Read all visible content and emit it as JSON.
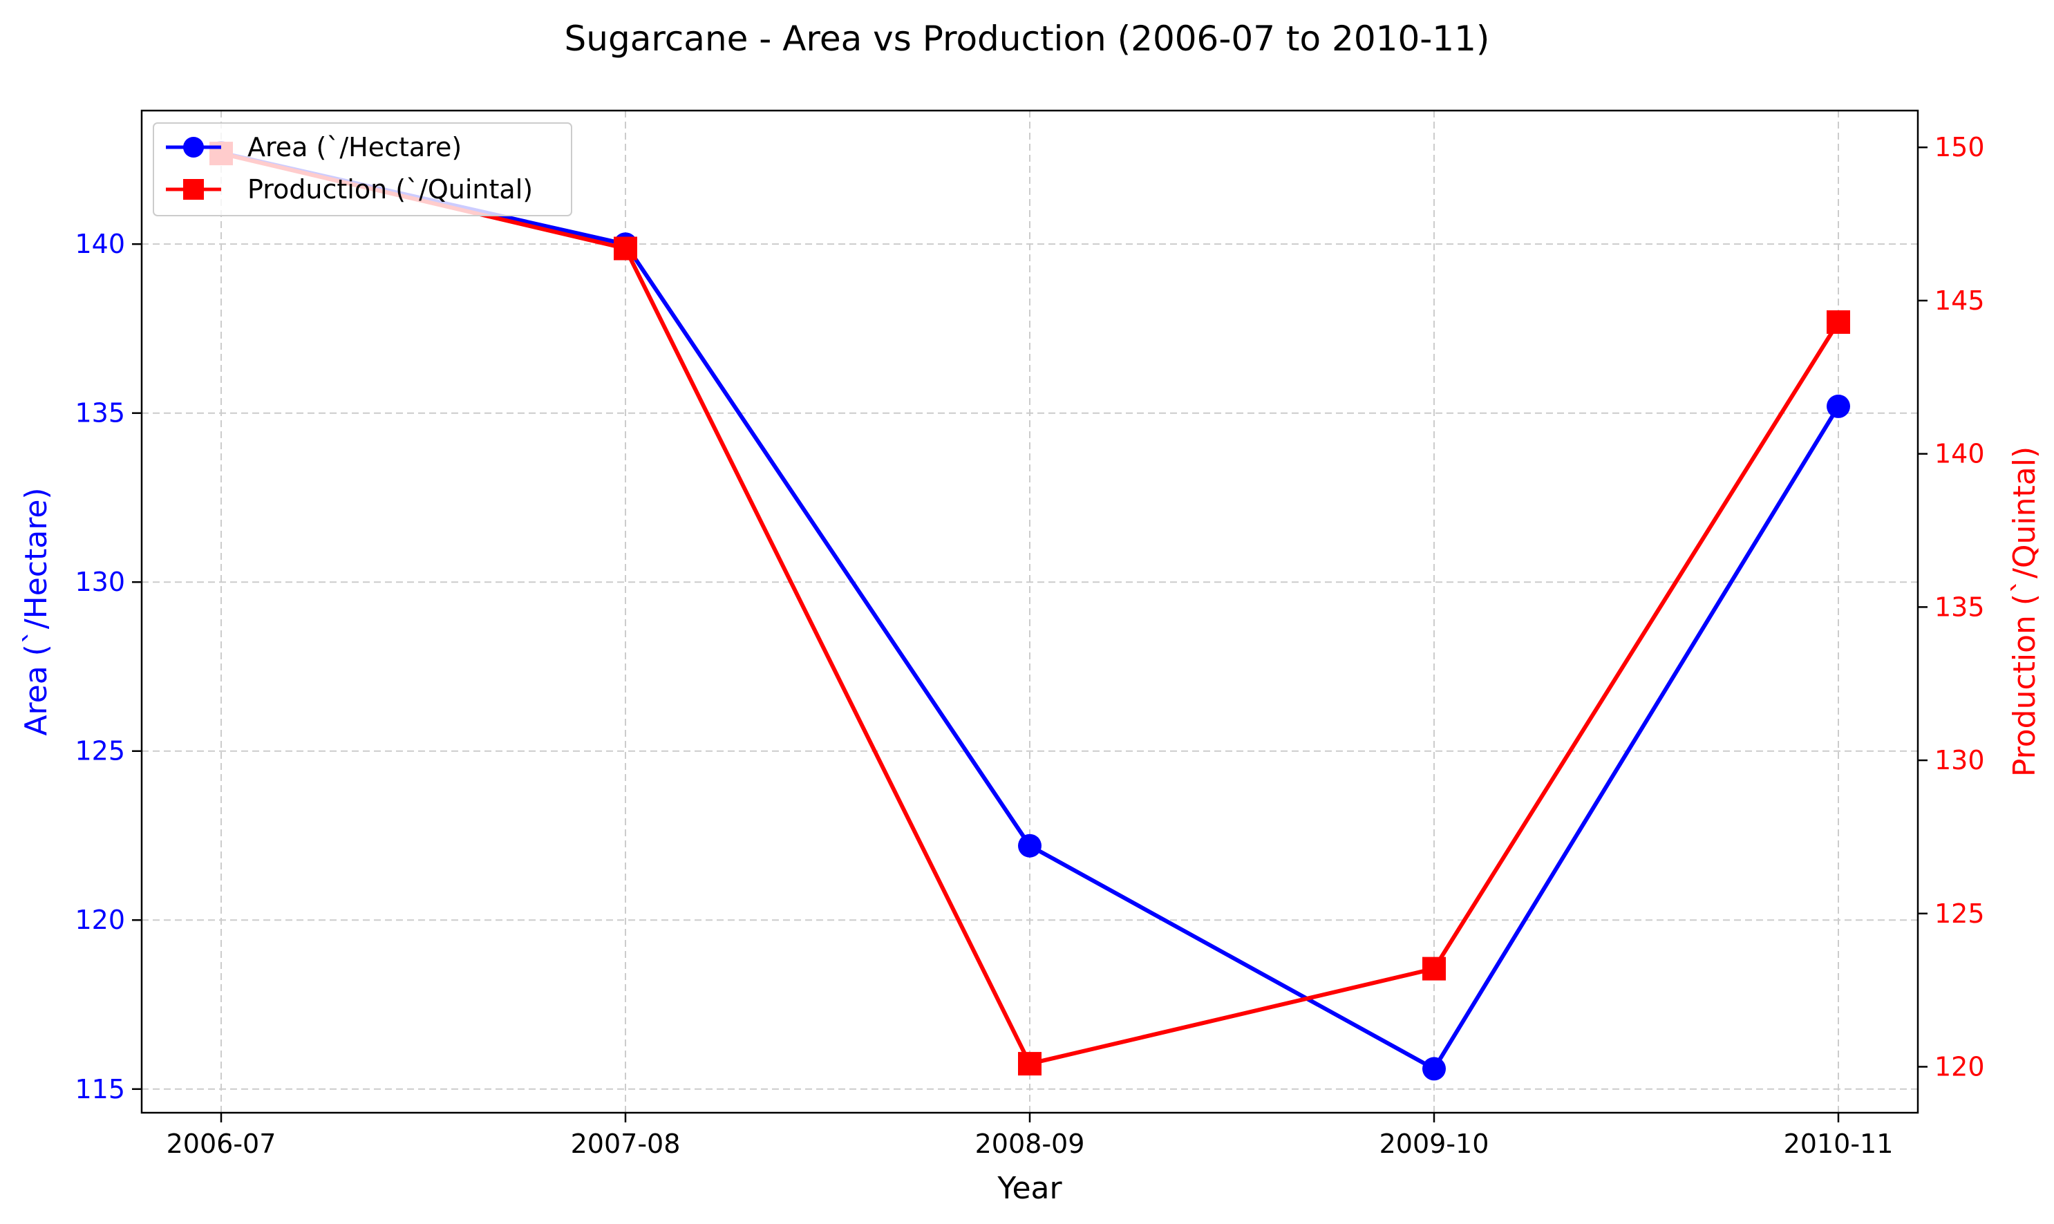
{
  "chart_data": {
    "type": "line",
    "title": "Sugarcane - Area vs Production (2006-07 to 2010-11)",
    "xlabel": "Year",
    "ylabel": "Area (`/Hectare)",
    "y2label": "Production (`/Quintal)",
    "categories": [
      "2006-07",
      "2007-08",
      "2008-09",
      "2009-10",
      "2010-11"
    ],
    "ylim": [
      114.3,
      143.95
    ],
    "y2lim": [
      118.5,
      151.2
    ],
    "yticks": [
      "115",
      "120",
      "125",
      "130",
      "135",
      "140"
    ],
    "y2ticks": [
      "120",
      "125",
      "130",
      "135",
      "140",
      "145",
      "150"
    ],
    "grid": true,
    "legend_position": "upper-left",
    "series": [
      {
        "name": "Area (`/Hectare)",
        "axis": "left",
        "color": "#0000ff",
        "marker": "circle",
        "values": [
          142.7,
          140.0,
          122.2,
          115.6,
          135.2
        ]
      },
      {
        "name": "Production (`/Quintal)",
        "axis": "right",
        "color": "#ff0000",
        "marker": "square",
        "values": [
          149.8,
          146.7,
          120.1,
          123.2,
          144.3
        ]
      }
    ]
  }
}
